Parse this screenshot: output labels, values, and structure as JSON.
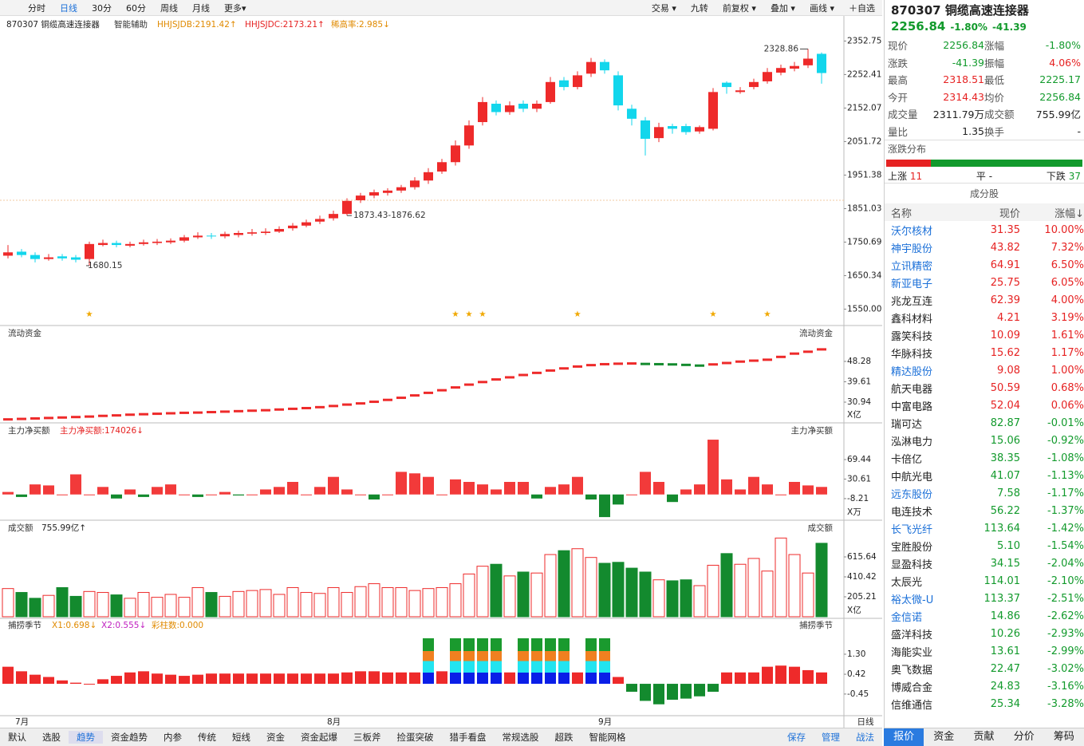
{
  "toolbar": {
    "left": [
      "分时",
      "日线",
      "30分",
      "60分",
      "周线",
      "月线",
      "更多▾"
    ],
    "right": [
      "交易 ▾",
      "九转",
      "前复权 ▾",
      "叠加 ▾",
      "画线 ▾",
      "＋自选"
    ]
  },
  "charts": {
    "title": "870307 铜缆高速连接器",
    "assist": "智能辅助",
    "indicators": [
      "HHJSJDB:2191.42↑",
      "HHJSJDC:2173.21↑",
      "稀高率:2.985↓"
    ],
    "x": [
      null,
      "7月",
      null,
      null,
      null,
      null,
      null,
      null,
      null,
      null,
      null,
      null,
      null,
      null,
      null,
      null,
      null,
      null,
      null,
      null,
      null,
      null,
      null,
      null,
      "8月",
      null,
      null,
      null,
      null,
      null,
      null,
      null,
      null,
      null,
      null,
      null,
      null,
      null,
      null,
      null,
      null,
      null,
      null,
      null,
      "9月",
      null,
      null,
      null,
      null,
      null,
      null,
      null,
      null,
      null,
      null,
      null,
      null,
      null,
      null,
      null,
      null
    ],
    "period": "日线",
    "price": {
      "type": "candlestick",
      "open": [
        1710,
        1722,
        1712,
        1700,
        1708,
        1705,
        1700,
        1742,
        1748,
        1740,
        1745,
        1748,
        1750,
        1755,
        1765,
        1770,
        1768,
        1772,
        1776,
        1778,
        1782,
        1792,
        1800,
        1812,
        1822,
        1835,
        1876,
        1890,
        1898,
        1905,
        1915,
        1935,
        1962,
        1990,
        2040,
        2110,
        2165,
        2140,
        2165,
        2150,
        2170,
        2235,
        2215,
        2255,
        2290,
        2250,
        2150,
        2115,
        2062,
        2098,
        2098,
        2082,
        2090,
        2228,
        2200,
        2215,
        2232,
        2258,
        2270,
        2280,
        2314.43
      ],
      "high": [
        1742,
        1730,
        1720,
        1715,
        1715,
        1712,
        1752,
        1758,
        1755,
        1752,
        1758,
        1760,
        1762,
        1772,
        1780,
        1778,
        1782,
        1785,
        1790,
        1792,
        1798,
        1808,
        1818,
        1830,
        1845,
        1882,
        1898,
        1908,
        1912,
        1922,
        1945,
        1972,
        2000,
        2055,
        2115,
        2185,
        2175,
        2172,
        2175,
        2175,
        2245,
        2245,
        2262,
        2302,
        2298,
        2262,
        2162,
        2125,
        2108,
        2105,
        2105,
        2100,
        2212,
        2232,
        2215,
        2240,
        2272,
        2282,
        2290,
        2328.86,
        2318.51
      ],
      "low": [
        1702,
        1705,
        1690,
        1695,
        1695,
        1690,
        1680.15,
        1738,
        1735,
        1735,
        1740,
        1742,
        1745,
        1750,
        1760,
        1760,
        1762,
        1765,
        1770,
        1772,
        1778,
        1785,
        1795,
        1805,
        1815,
        1830,
        1868,
        1882,
        1890,
        1898,
        1908,
        1925,
        1955,
        1980,
        2030,
        2100,
        2130,
        2132,
        2140,
        2140,
        2165,
        2205,
        2208,
        2245,
        2255,
        2145,
        2100,
        2010,
        2050,
        2075,
        2072,
        2075,
        2085,
        2195,
        2195,
        2208,
        2225,
        2250,
        2262,
        2272,
        2225.17
      ],
      "close": [
        1720,
        1712,
        1700,
        1705,
        1702,
        1698,
        1745,
        1748,
        1742,
        1745,
        1750,
        1752,
        1755,
        1765,
        1770,
        1768,
        1775,
        1778,
        1780,
        1782,
        1790,
        1800,
        1810,
        1820,
        1835,
        1874,
        1890,
        1900,
        1905,
        1915,
        1935,
        1960,
        1990,
        2040,
        2100,
        2170,
        2140,
        2160,
        2150,
        2165,
        2230,
        2215,
        2250,
        2290,
        2265,
        2160,
        2120,
        2060,
        2095,
        2090,
        2080,
        2095,
        2200,
        2215,
        2205,
        2230,
        2260,
        2272,
        2278,
        2300,
        2256.84
      ],
      "ylim": [
        1520,
        2380
      ],
      "yticks": [
        2352.75,
        2252.41,
        2152.07,
        2051.72,
        1951.38,
        1851.03,
        1750.69,
        1650.34,
        {
          "value": 1550,
          "label": "1550.00"
        }
      ],
      "annotations": [
        "2328.86",
        "1873.43-1876.62",
        "1680.15"
      ]
    },
    "flow": {
      "type": "line",
      "title": "流动资金",
      "values": [
        23.6,
        23.8,
        24.0,
        24.2,
        24.4,
        24.6,
        24.8,
        25.1,
        25.3,
        25.6,
        25.8,
        26.0,
        26.2,
        26.4,
        26.5,
        26.7,
        26.9,
        27.1,
        27.3,
        27.5,
        27.8,
        28.1,
        28.4,
        28.8,
        29.3,
        29.9,
        30.4,
        31.1,
        31.9,
        32.8,
        33.8,
        34.9,
        36.0,
        37.2,
        38.4,
        39.5,
        40.6,
        41.5,
        42.5,
        43.4,
        44.4,
        45.3,
        46.1,
        46.7,
        47.1,
        47.3,
        47.4,
        47.2,
        47.1,
        47.0,
        46.8,
        46.5,
        47.0,
        47.6,
        48.2,
        48.6,
        49.0,
        50.2,
        51.6,
        52.4,
        53.4
      ],
      "ylim": [
        22.8,
        58.8
      ],
      "yticks": [
        48.28,
        39.61,
        30.94
      ],
      "unit": "X亿"
    },
    "netbuy": {
      "type": "bar",
      "title": "主力净买额",
      "label": "主力净买额:174026↓",
      "values": [
        5,
        -5,
        20,
        18,
        0,
        40,
        0,
        15,
        -8,
        10,
        -5,
        15,
        20,
        0,
        -5,
        0,
        5,
        -2,
        0,
        10,
        15,
        25,
        0,
        15,
        35,
        10,
        0,
        -10,
        0,
        45,
        42,
        35,
        0,
        30,
        25,
        20,
        10,
        25,
        25,
        -8,
        15,
        20,
        35,
        -10,
        -45,
        -20,
        0,
        45,
        25,
        -15,
        10,
        20,
        109,
        30,
        10,
        35,
        20,
        0,
        25,
        18,
        15
      ],
      "ylim": [
        -48,
        118.6
      ],
      "yticks": [
        69.44,
        30.61,
        -8.21
      ],
      "unit": "X万"
    },
    "turnover": {
      "type": "bar",
      "title": "成交额",
      "label": "755.99亿↑",
      "values": [
        290,
        250,
        190,
        220,
        300,
        210,
        260,
        250,
        225,
        190,
        250,
        200,
        230,
        200,
        300,
        250,
        210,
        260,
        270,
        280,
        230,
        300,
        250,
        240,
        300,
        250,
        310,
        340,
        300,
        300,
        270,
        290,
        300,
        340,
        440,
        520,
        540,
        420,
        460,
        450,
        640,
        680,
        700,
        610,
        550,
        560,
        500,
        460,
        380,
        370,
        380,
        320,
        530,
        650,
        540,
        600,
        470,
        810,
        640,
        450,
        755.99
      ],
      "ylim": [
        0,
        862
      ],
      "yticks": [
        615.64,
        410.42,
        205.21
      ],
      "unit": "X亿"
    },
    "season": {
      "type": "bar",
      "title": "捕捞季节",
      "labels": [
        "X1:0.698↓",
        "X2:0.555↓",
        "彩柱数:0.000"
      ],
      "values": [
        0.75,
        0.55,
        0.4,
        0.3,
        0.15,
        0.05,
        0.0,
        0.2,
        0.35,
        0.5,
        0.55,
        0.45,
        0.4,
        0.35,
        0.4,
        0.45,
        0.45,
        0.45,
        0.45,
        0.45,
        0.45,
        0.45,
        0.45,
        0.45,
        0.45,
        0.5,
        0.55,
        0.55,
        0.5,
        0.5,
        0.5,
        2.0,
        0.55,
        2.0,
        2.0,
        2.0,
        2.0,
        0.5,
        2.0,
        2.0,
        2.0,
        2.0,
        0.5,
        2.0,
        2.0,
        0.3,
        -0.35,
        -0.75,
        -0.9,
        -0.7,
        -0.65,
        -0.55,
        -0.35,
        0.5,
        0.5,
        0.5,
        0.75,
        0.8,
        0.75,
        0.6,
        0.5
      ],
      "ylim": [
        -1.33,
        2.35
      ],
      "yticks": [
        {
          "value": 1.3,
          "label": "1.30"
        },
        0.42,
        -0.45
      ]
    }
  },
  "quote": {
    "code": "870307",
    "name": "铜缆高速连接器",
    "price": "2256.84",
    "pct": "-1.80%",
    "chg": "-41.39",
    "rows": [
      [
        "现价",
        "2256.84",
        "涨幅",
        "-1.80%"
      ],
      [
        "涨跌",
        "-41.39",
        "振幅",
        "4.06%"
      ],
      [
        "最高",
        "2318.51",
        "最低",
        "2225.17"
      ],
      [
        "今开",
        "2314.43",
        "均价",
        "2256.84"
      ],
      [
        "成交量",
        "2311.79万",
        "成交额",
        "755.99亿"
      ],
      [
        "量比",
        "1.35",
        "换手",
        "-"
      ]
    ],
    "dist_title": "涨跌分布",
    "up_label": "上涨",
    "up": 11,
    "flat_label": "平",
    "flat": "-",
    "down_label": "下跌",
    "down": 37
  },
  "components": {
    "title": "成分股",
    "headers": [
      "名称",
      "现价",
      "涨幅↓"
    ],
    "rows": [
      [
        "沃尔核材",
        "31.35",
        "10.00%"
      ],
      [
        "神宇股份",
        "43.82",
        "7.32%"
      ],
      [
        "立讯精密",
        "64.91",
        "6.50%"
      ],
      [
        "新亚电子",
        "25.75",
        "6.05%"
      ],
      [
        "兆龙互连",
        "62.39",
        "4.00%"
      ],
      [
        "鑫科材料",
        "4.21",
        "3.19%"
      ],
      [
        "露笑科技",
        "10.09",
        "1.61%"
      ],
      [
        "华脉科技",
        "15.62",
        "1.17%"
      ],
      [
        "精达股份",
        "9.08",
        "1.00%"
      ],
      [
        "航天电器",
        "50.59",
        "0.68%"
      ],
      [
        "中富电路",
        "52.04",
        "0.06%"
      ],
      [
        "瑞可达",
        "82.87",
        "-0.01%"
      ],
      [
        "泓淋电力",
        "15.06",
        "-0.92%"
      ],
      [
        "卡倍亿",
        "38.35",
        "-1.08%"
      ],
      [
        "中航光电",
        "41.07",
        "-1.13%"
      ],
      [
        "远东股份",
        "7.58",
        "-1.17%"
      ],
      [
        "电连技术",
        "56.22",
        "-1.37%"
      ],
      [
        "长飞光纤",
        "113.64",
        "-1.42%"
      ],
      [
        "宝胜股份",
        "5.10",
        "-1.54%"
      ],
      [
        "显盈科技",
        "34.15",
        "-2.04%"
      ],
      [
        "太辰光",
        "114.01",
        "-2.10%"
      ],
      [
        "裕太微-U",
        "113.37",
        "-2.51%"
      ],
      [
        "金信诺",
        "14.86",
        "-2.62%"
      ],
      [
        "盛洋科技",
        "10.26",
        "-2.93%"
      ],
      [
        "海能实业",
        "13.61",
        "-2.99%"
      ],
      [
        "奥飞数据",
        "22.47",
        "-3.02%"
      ],
      [
        "博威合金",
        "24.83",
        "-3.16%"
      ],
      [
        "信维通信",
        "25.34",
        "-3.28%"
      ]
    ]
  },
  "bottom_tabs": {
    "left": [
      "默认",
      "选股",
      "趋势",
      "资金趋势",
      "内参",
      "传统",
      "短线",
      "资金",
      "资金起爆",
      "三板斧",
      "捡蛋突破",
      "猎手看盘",
      "常规选股",
      "超跌",
      "智能网格"
    ],
    "right": [
      "保存",
      "管理",
      "战法"
    ],
    "panel": [
      "报价",
      "资金",
      "贡献",
      "分价",
      "筹码"
    ]
  }
}
